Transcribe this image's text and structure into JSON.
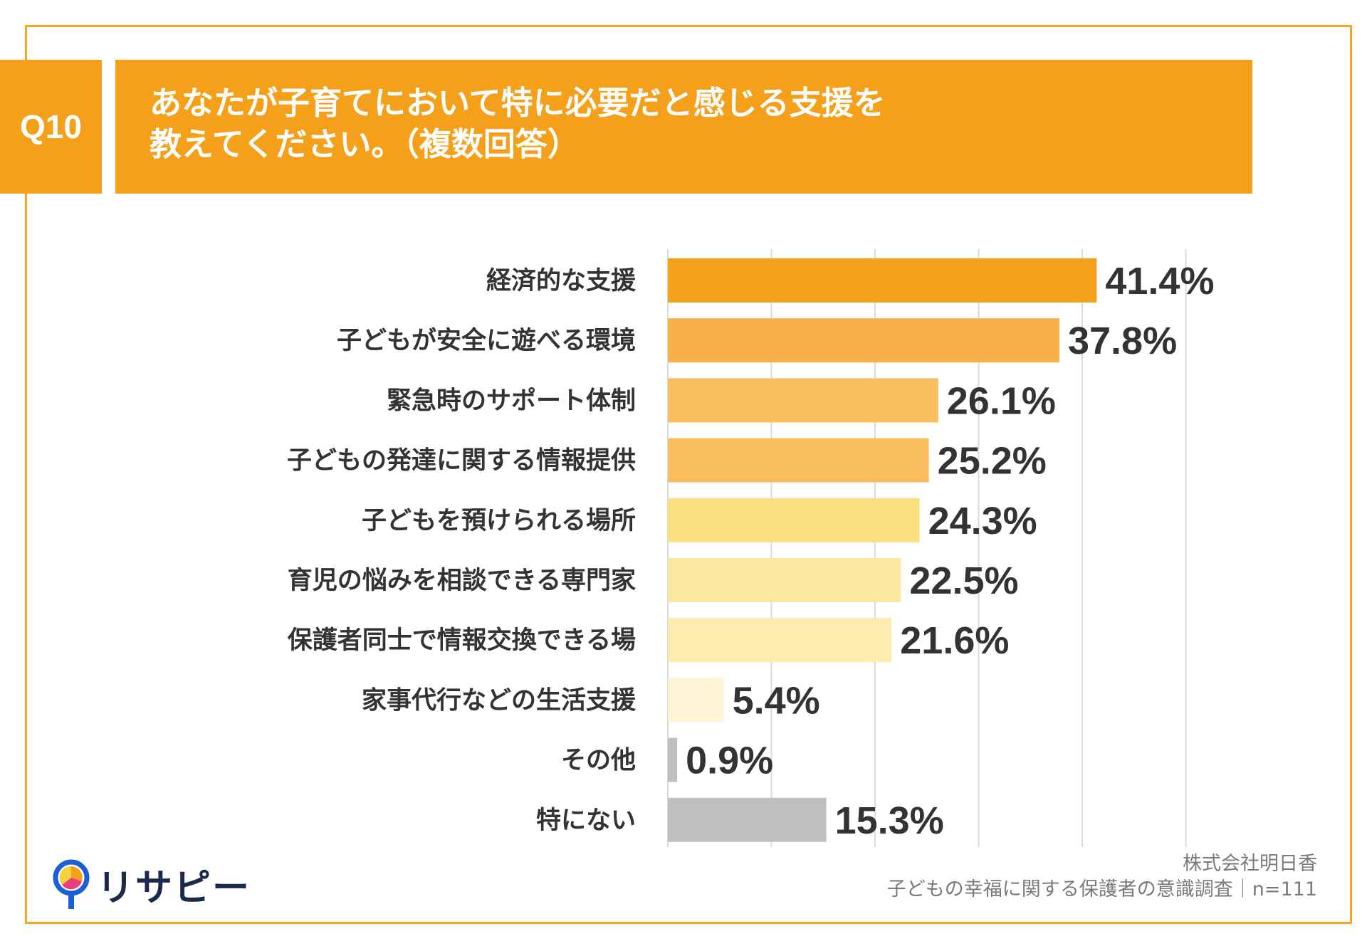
{
  "header": {
    "badge": "Q10",
    "title_line1": "あなたが子育てにおいて特に必要だと感じる支援を",
    "title_line2": "教えてください。（複数回答）"
  },
  "chart_data": {
    "type": "bar",
    "orientation": "horizontal",
    "categories": [
      "経済的な支援",
      "子どもが安全に遊べる環境",
      "緊急時のサポート体制",
      "子どもの発達に関する情報提供",
      "子どもを預けられる場所",
      "育児の悩みを相談できる専門家",
      "保護者同士で情報交換できる場",
      "家事代行などの生活支援",
      "その他",
      "特にない"
    ],
    "values": [
      41.4,
      37.8,
      26.1,
      25.2,
      24.3,
      22.5,
      21.6,
      5.4,
      0.9,
      15.3
    ],
    "value_labels": [
      "41.4%",
      "37.8%",
      "26.1%",
      "25.2%",
      "24.3%",
      "22.5%",
      "21.6%",
      "5.4%",
      "0.9%",
      "15.3%"
    ],
    "colors": [
      "#f5a01a",
      "#f7b04a",
      "#f9bd5e",
      "#f9bd5e",
      "#fcdf7e",
      "#fce79e",
      "#fdecb0",
      "#fef5d6",
      "#bfbfbf",
      "#bfbfbf"
    ],
    "xlim": [
      0,
      50
    ],
    "grid": true,
    "unit": "%"
  },
  "footer": {
    "logo_text": "リサピー",
    "source_line1": "株式会社明日香",
    "source_line2": "子どもの幸福に関する保護者の意識調査｜n=111"
  },
  "colors": {
    "accent": "#f5a01a",
    "frame": "#f5a623",
    "logo_navy": "#1b2a4a"
  }
}
